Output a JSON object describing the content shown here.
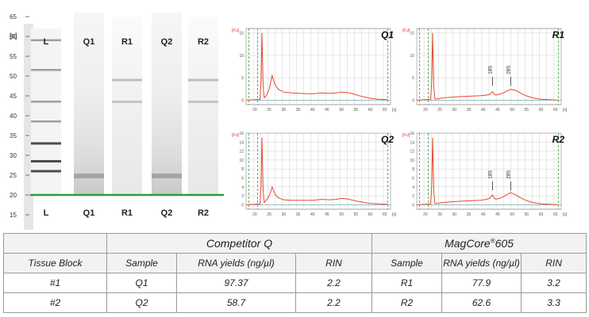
{
  "gel": {
    "time_unit": "[s]",
    "y_ticks": [
      "65",
      "60",
      "55",
      "50",
      "45",
      "40",
      "35",
      "30",
      "25",
      "20",
      "15"
    ],
    "lane_labels_top": [
      "L",
      "Q1",
      "R1",
      "Q2",
      "R2"
    ],
    "lane_labels_bottom": [
      "L",
      "Q1",
      "R1",
      "Q2",
      "R2"
    ],
    "ladder_bands_s": [
      59,
      51.5,
      43.5,
      38.5,
      33,
      28.5,
      26
    ],
    "colors": {
      "marker": "#2e9a3e",
      "background": "#ffffff"
    }
  },
  "chart_data": [
    {
      "type": "line",
      "title": "Q1",
      "ylabel": "[FU]",
      "xlabel": "[s]",
      "xlim": [
        17,
        67
      ],
      "ylim": [
        -1,
        16
      ],
      "x_ticks": [
        20,
        25,
        30,
        35,
        40,
        45,
        50,
        55,
        60,
        65
      ],
      "y_ticks": [
        0,
        5,
        10,
        15
      ],
      "grid": true,
      "series": [
        {
          "x": [
            17,
            20,
            21.8,
            22.2,
            22.5,
            22.9,
            23.3,
            24,
            25,
            26,
            27,
            28,
            30,
            33,
            36,
            40,
            43,
            46,
            48,
            50,
            52,
            54,
            56,
            58,
            60,
            63,
            66
          ],
          "y": [
            0,
            0.1,
            0.2,
            4,
            15,
            3,
            0.5,
            1,
            2.5,
            5.5,
            3.5,
            2.5,
            1.8,
            1.6,
            1.5,
            1.4,
            1.6,
            1.5,
            1.6,
            1.8,
            1.7,
            1.4,
            1.0,
            0.7,
            0.4,
            0.2,
            0.1
          ]
        }
      ],
      "annotations": []
    },
    {
      "type": "line",
      "title": "R1",
      "ylabel": "[FU]",
      "xlabel": "[s]",
      "xlim": [
        17,
        67
      ],
      "ylim": [
        -1,
        16
      ],
      "x_ticks": [
        20,
        25,
        30,
        35,
        40,
        45,
        50,
        55,
        60,
        65
      ],
      "y_ticks": [
        0,
        5,
        10,
        15
      ],
      "grid": true,
      "series": [
        {
          "x": [
            17,
            20,
            21.8,
            22.2,
            22.5,
            22.9,
            23.3,
            24,
            26,
            28,
            30,
            33,
            36,
            39,
            41,
            42.3,
            43.2,
            44,
            45,
            46,
            47,
            48,
            49.5,
            51,
            52,
            54,
            56,
            58,
            60,
            63,
            66
          ],
          "y": [
            0,
            0.1,
            0.2,
            4,
            15,
            3,
            0.3,
            0.3,
            0.5,
            0.6,
            0.7,
            0.8,
            0.9,
            1.0,
            1.1,
            1.3,
            1.9,
            1.2,
            1.2,
            1.4,
            1.6,
            2.0,
            2.4,
            2.2,
            1.9,
            1.2,
            0.7,
            0.4,
            0.2,
            0.1,
            0
          ]
        }
      ],
      "annotations": [
        {
          "text": "18S",
          "x": 43.2
        },
        {
          "text": "28S",
          "x": 49.5
        }
      ]
    },
    {
      "type": "line",
      "title": "Q2",
      "ylabel": "[FU]",
      "xlabel": "[s]",
      "xlim": [
        17,
        67
      ],
      "ylim": [
        -1,
        16
      ],
      "x_ticks": [
        20,
        25,
        30,
        35,
        40,
        45,
        50,
        55,
        60,
        65
      ],
      "y_ticks": [
        0,
        2,
        4,
        6,
        8,
        10,
        12,
        14,
        16
      ],
      "grid": true,
      "series": [
        {
          "x": [
            17,
            20,
            21.8,
            22.2,
            22.5,
            22.9,
            23.3,
            24,
            25,
            26,
            27,
            28,
            30,
            33,
            36,
            40,
            43,
            46,
            48,
            50,
            52,
            54,
            56,
            58,
            60,
            63,
            66
          ],
          "y": [
            0,
            0.1,
            0.2,
            4,
            15,
            3,
            0.5,
            1,
            2,
            4,
            2.4,
            1.6,
            1.1,
            1.0,
            1.0,
            1.0,
            1.2,
            1.1,
            1.2,
            1.4,
            1.3,
            1.0,
            0.7,
            0.5,
            0.3,
            0.2,
            0.1
          ]
        }
      ],
      "annotations": []
    },
    {
      "type": "line",
      "title": "R2",
      "ylabel": "[FU]",
      "xlabel": "[s]",
      "xlim": [
        17,
        67
      ],
      "ylim": [
        -1,
        16
      ],
      "x_ticks": [
        20,
        25,
        30,
        35,
        40,
        45,
        50,
        55,
        60,
        65
      ],
      "y_ticks": [
        0,
        2,
        4,
        6,
        8,
        10,
        12,
        14,
        16
      ],
      "grid": true,
      "series": [
        {
          "x": [
            17,
            20,
            21.8,
            22.2,
            22.5,
            22.9,
            23.3,
            24,
            26,
            28,
            30,
            33,
            36,
            39,
            41,
            42.3,
            43.2,
            44,
            45,
            46,
            47,
            48,
            49.5,
            51,
            52,
            54,
            56,
            58,
            60,
            63,
            66
          ],
          "y": [
            0,
            0.1,
            0.2,
            4,
            15,
            3,
            0.3,
            0.3,
            0.5,
            0.6,
            0.7,
            0.8,
            0.9,
            1.0,
            1.2,
            1.5,
            2.2,
            1.3,
            1.3,
            1.5,
            1.8,
            2.2,
            2.7,
            2.3,
            1.9,
            1.2,
            0.7,
            0.4,
            0.2,
            0.1,
            0
          ]
        }
      ],
      "annotations": [
        {
          "text": "18S",
          "x": 43.2
        },
        {
          "text": "28S",
          "x": 49.5
        }
      ]
    }
  ],
  "table": {
    "group1": "Competitor Q",
    "group2_main": "MagCore",
    "group2_sup": "®",
    "group2_tail": "605",
    "headers": [
      "Tissue Block",
      "Sample",
      "RNA yields (ng/µl)",
      "RIN",
      "Sample",
      "RNA yields (ng/µl)",
      "RIN"
    ],
    "rows": [
      [
        "#1",
        "Q1",
        "97.37",
        "2.2",
        "R1",
        "77.9",
        "3.2"
      ],
      [
        "#2",
        "Q2",
        "58.7",
        "2.2",
        "R2",
        "62.6",
        "3.3"
      ]
    ]
  },
  "colors": {
    "trace": "#e8482c",
    "marker_line": "#2e9a3e",
    "grid": "#cfcfcf",
    "table_header": "#f2f2f2"
  }
}
